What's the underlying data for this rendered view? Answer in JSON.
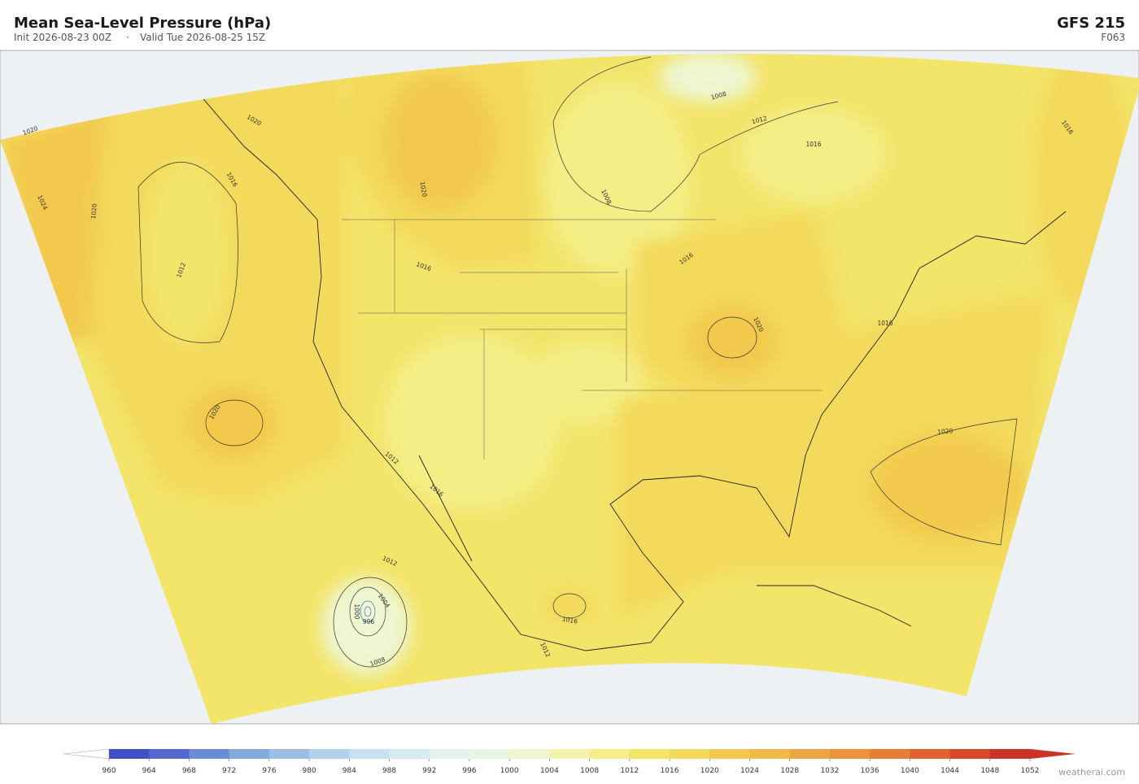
{
  "header": {
    "title": "Mean Sea-Level Pressure  (hPa)",
    "init": "Init 2026-08-23 00Z",
    "separator": "·",
    "valid": "Valid Tue 2026-08-25 15Z",
    "model": "GFS  215",
    "step": "F063"
  },
  "contour_labels": [
    "1020",
    "1024",
    "1020",
    "1012",
    "1016",
    "1020",
    "1016",
    "1020",
    "1008",
    "1012",
    "1008",
    "1016",
    "1016",
    "1020",
    "1012",
    "1016",
    "1020",
    "1016",
    "1012",
    "1004",
    "1000",
    "996",
    "1008",
    "1016",
    "1012",
    "1020",
    "1016"
  ],
  "colorbar": {
    "ticks": [
      960,
      964,
      968,
      972,
      976,
      980,
      984,
      988,
      992,
      996,
      1000,
      1004,
      1008,
      1012,
      1016,
      1020,
      1024,
      1028,
      1032,
      1036,
      1040,
      1044,
      1048,
      1052
    ],
    "colors": [
      "#3f51c4",
      "#5468cf",
      "#6a8bd8",
      "#82a9dc",
      "#9bbfe3",
      "#b2d2ec",
      "#c9e2f0",
      "#d8ecef",
      "#e2f2ee",
      "#e9f5e4",
      "#eef6d2",
      "#f1f3b0",
      "#f3ee85",
      "#f3e46a",
      "#f3d95c",
      "#f2c94d",
      "#f0b948",
      "#eea640",
      "#ec923a",
      "#e87d35",
      "#e0622f",
      "#d64a2a",
      "#c93226"
    ]
  },
  "credit": "weatherai.com"
}
